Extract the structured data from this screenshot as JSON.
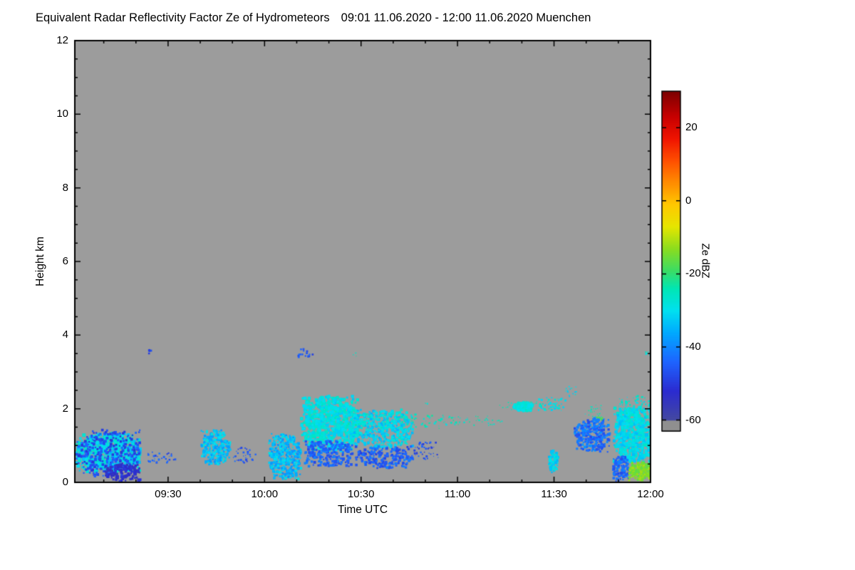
{
  "header": {
    "title": "Equivalent Radar Reflectivity Factor Ze of Hydrometeors",
    "period": "09:01 11.06.2020 - 12:00 11.06.2020 Muenchen"
  },
  "chart_data": {
    "type": "heatmap",
    "title": "Equivalent Radar Reflectivity Factor Ze of Hydrometeors",
    "subtitle": "09:01 11.06.2020 - 12:00 11.06.2020 Muenchen",
    "station": "Muenchen",
    "xlabel": "Time UTC",
    "ylabel": "Height km",
    "x_domain_minutes": [
      541,
      720
    ],
    "x_ticks": [
      {
        "m": 570,
        "label": "09:30"
      },
      {
        "m": 600,
        "label": "10:00"
      },
      {
        "m": 630,
        "label": "10:30"
      },
      {
        "m": 660,
        "label": "11:00"
      },
      {
        "m": 690,
        "label": "11:30"
      },
      {
        "m": 720,
        "label": "12:00"
      }
    ],
    "x_minor_step_min": 10,
    "y_domain_km": [
      0,
      12
    ],
    "y_ticks": [
      0,
      2,
      4,
      6,
      8,
      10,
      12
    ],
    "y_minor_step_km": 0.5,
    "plot_bg": "#9c9c9c",
    "colorbar": {
      "label": "Ze dBZ",
      "ticks": [
        20,
        0,
        -20,
        -40,
        -60
      ],
      "range": [
        -63,
        30
      ],
      "stops": [
        [
          -63,
          "#8f8f8f"
        ],
        [
          -60.1,
          "#8f8f8f"
        ],
        [
          -60,
          "#4449a0"
        ],
        [
          -52,
          "#2b2bd0"
        ],
        [
          -44,
          "#1e64ff"
        ],
        [
          -36,
          "#00aaff"
        ],
        [
          -30,
          "#00e0f0"
        ],
        [
          -24,
          "#00e6b4"
        ],
        [
          -19,
          "#3cdc64"
        ],
        [
          -13,
          "#8cdc1e"
        ],
        [
          -7,
          "#e6e600"
        ],
        [
          -1,
          "#ffc800"
        ],
        [
          5,
          "#ff8c00"
        ],
        [
          11,
          "#ff5000"
        ],
        [
          17,
          "#f01400"
        ],
        [
          23,
          "#c80000"
        ],
        [
          30,
          "#7d0000"
        ]
      ]
    },
    "echo_clusters": [
      {
        "t": [
          541,
          561
        ],
        "h": [
          0.25,
          1.3
        ],
        "dbz": -30,
        "jit": 9,
        "n": 650,
        "s": [
          2,
          5
        ]
      },
      {
        "t": [
          541,
          561
        ],
        "h": [
          0.1,
          1.4
        ],
        "dbz": -47,
        "jit": 8,
        "n": 330,
        "s": [
          2,
          4
        ]
      },
      {
        "t": [
          550,
          561
        ],
        "h": [
          0.0,
          0.45
        ],
        "dbz": -53,
        "jit": 6,
        "n": 140,
        "s": [
          2,
          4
        ]
      },
      {
        "t": [
          563,
          568
        ],
        "h": [
          0.5,
          0.85
        ],
        "dbz": -45,
        "jit": 8,
        "n": 22,
        "s": [
          1,
          3
        ]
      },
      {
        "t": [
          563.5,
          564.5
        ],
        "h": [
          3.45,
          3.6
        ],
        "dbz": -48,
        "jit": 4,
        "n": 5,
        "s": [
          2,
          3
        ]
      },
      {
        "t": [
          568,
          572
        ],
        "h": [
          0.5,
          0.8
        ],
        "dbz": -46,
        "jit": 6,
        "n": 12,
        "s": [
          1,
          3
        ]
      },
      {
        "t": [
          580,
          589
        ],
        "h": [
          0.45,
          1.4
        ],
        "dbz": -33,
        "jit": 11,
        "n": 240,
        "s": [
          2,
          4
        ]
      },
      {
        "t": [
          590,
          597
        ],
        "h": [
          0.5,
          0.95
        ],
        "dbz": -45,
        "jit": 8,
        "n": 35,
        "s": [
          1,
          3
        ]
      },
      {
        "t": [
          601,
          611
        ],
        "h": [
          0.05,
          1.3
        ],
        "dbz": -34,
        "jit": 11,
        "n": 360,
        "s": [
          2,
          4
        ]
      },
      {
        "t": [
          609,
          615
        ],
        "h": [
          3.35,
          3.6
        ],
        "dbz": -46,
        "jit": 6,
        "n": 16,
        "s": [
          2,
          3
        ]
      },
      {
        "t": [
          611,
          629
        ],
        "h": [
          0.8,
          2.3
        ],
        "dbz": -29,
        "jit": 8,
        "n": 760,
        "s": [
          2,
          5
        ]
      },
      {
        "t": [
          612,
          627
        ],
        "h": [
          0.4,
          1.1
        ],
        "dbz": -44,
        "jit": 8,
        "n": 240,
        "s": [
          2,
          4
        ]
      },
      {
        "t": [
          626,
          646
        ],
        "h": [
          0.9,
          1.95
        ],
        "dbz": -31,
        "jit": 9,
        "n": 430,
        "s": [
          2,
          4
        ]
      },
      {
        "t": [
          628,
          646
        ],
        "h": [
          0.35,
          0.95
        ],
        "dbz": -45,
        "jit": 9,
        "n": 200,
        "s": [
          2,
          4
        ]
      },
      {
        "t": [
          620,
          664
        ],
        "h": [
          1.45,
          1.85
        ],
        "dbz": -26,
        "jit": 7,
        "n": 120,
        "s": [
          1,
          3
        ]
      },
      {
        "t": [
          646,
          654
        ],
        "h": [
          0.6,
          1.1
        ],
        "dbz": -47,
        "jit": 7,
        "n": 45,
        "s": [
          1,
          3
        ]
      },
      {
        "t": [
          658,
          674
        ],
        "h": [
          1.5,
          1.8
        ],
        "dbz": -25,
        "jit": 6,
        "n": 35,
        "s": [
          1,
          2
        ]
      },
      {
        "t": [
          627,
          629
        ],
        "h": [
          3.4,
          3.5
        ],
        "dbz": -26,
        "jit": 4,
        "n": 3,
        "s": [
          1,
          2
        ]
      },
      {
        "t": [
          649,
          651
        ],
        "h": [
          2.05,
          2.15
        ],
        "dbz": -26,
        "jit": 4,
        "n": 3,
        "s": [
          1,
          2
        ]
      },
      {
        "t": [
          672,
          686
        ],
        "h": [
          1.95,
          2.2
        ],
        "dbz": -25,
        "jit": 6,
        "n": 20,
        "s": [
          1,
          2
        ]
      },
      {
        "t": [
          677,
          683
        ],
        "h": [
          1.9,
          2.15
        ],
        "dbz": -28,
        "jit": 5,
        "n": 150,
        "s": [
          2,
          4
        ]
      },
      {
        "t": [
          684,
          694
        ],
        "h": [
          1.9,
          2.3
        ],
        "dbz": -28,
        "jit": 8,
        "n": 55,
        "s": [
          1,
          3
        ]
      },
      {
        "t": [
          688,
          691
        ],
        "h": [
          0.2,
          0.85
        ],
        "dbz": -31,
        "jit": 8,
        "n": 80,
        "s": [
          2,
          4
        ]
      },
      {
        "t": [
          696,
          707
        ],
        "h": [
          0.8,
          1.7
        ],
        "dbz": -43,
        "jit": 10,
        "n": 260,
        "s": [
          2,
          4
        ]
      },
      {
        "t": [
          699,
          705
        ],
        "h": [
          1.75,
          2.1
        ],
        "dbz": -25,
        "jit": 6,
        "n": 28,
        "s": [
          1,
          2
        ]
      },
      {
        "t": [
          693,
          697
        ],
        "h": [
          2.3,
          2.6
        ],
        "dbz": -30,
        "jit": 7,
        "n": 18,
        "s": [
          1,
          2
        ]
      },
      {
        "t": [
          703,
          705
        ],
        "h": [
          1.65,
          1.78
        ],
        "dbz": -18,
        "jit": 3,
        "n": 6,
        "s": [
          2,
          3
        ]
      },
      {
        "t": [
          708,
          720
        ],
        "h": [
          0.5,
          2.0
        ],
        "dbz": -30,
        "jit": 8,
        "n": 520,
        "s": [
          2,
          5
        ]
      },
      {
        "t": [
          710,
          720
        ],
        "h": [
          1.8,
          2.35
        ],
        "dbz": -28,
        "jit": 7,
        "n": 80,
        "s": [
          1,
          3
        ]
      },
      {
        "t": [
          708,
          713
        ],
        "h": [
          0.0,
          0.7
        ],
        "dbz": -44,
        "jit": 8,
        "n": 110,
        "s": [
          2,
          4
        ]
      },
      {
        "t": [
          713,
          720
        ],
        "h": [
          0.02,
          0.5
        ],
        "dbz": -14,
        "jit": 7,
        "n": 190,
        "s": [
          2,
          4
        ]
      },
      {
        "t": [
          718,
          720
        ],
        "h": [
          3.35,
          3.55
        ],
        "dbz": -27,
        "jit": 5,
        "n": 6,
        "s": [
          1,
          3
        ]
      }
    ]
  }
}
